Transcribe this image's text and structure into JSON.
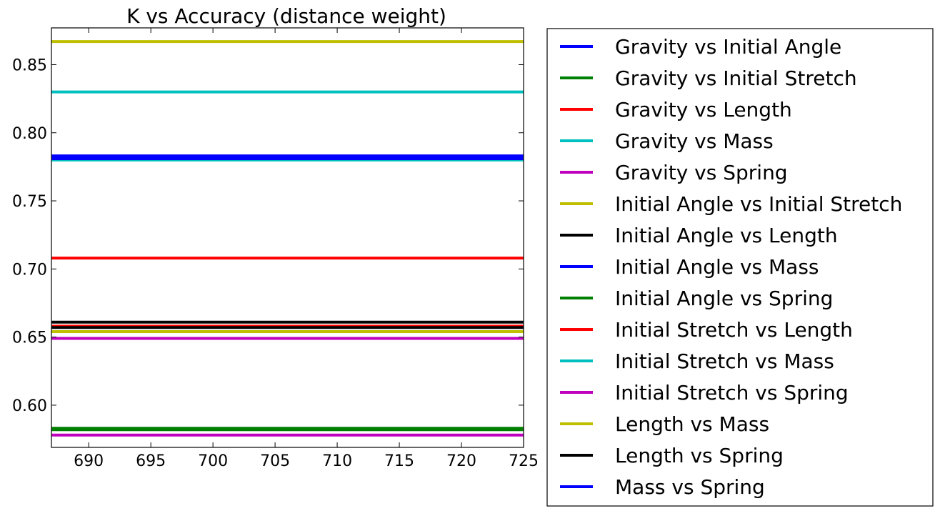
{
  "chart_data": {
    "type": "line",
    "title": "K vs Accuracy (distance weight)",
    "xlabel": "",
    "ylabel": "",
    "xlim": [
      687,
      725
    ],
    "ylim": [
      0.569,
      0.877
    ],
    "x_ticks": [
      690,
      695,
      700,
      705,
      710,
      715,
      720,
      725
    ],
    "x_tick_labels": [
      "690",
      "695",
      "700",
      "705",
      "710",
      "715",
      "720",
      "725"
    ],
    "y_ticks": [
      0.6,
      0.65,
      0.7,
      0.75,
      0.8,
      0.85
    ],
    "y_tick_labels": [
      "0.60",
      "0.65",
      "0.70",
      "0.75",
      "0.80",
      "0.85"
    ],
    "grid": false,
    "legend_position": "outside-right",
    "x": [
      687,
      725
    ],
    "series": [
      {
        "name": "Gravity vs Initial Angle",
        "color": "#0000ff",
        "values": [
          0.783,
          0.783
        ]
      },
      {
        "name": "Gravity vs Initial Stretch",
        "color": "#008000",
        "values": [
          0.582,
          0.582
        ]
      },
      {
        "name": "Gravity vs Length",
        "color": "#ff0000",
        "values": [
          0.658,
          0.658
        ]
      },
      {
        "name": "Gravity vs Mass",
        "color": "#00bfbf",
        "values": [
          0.78,
          0.78
        ]
      },
      {
        "name": "Gravity vs Spring",
        "color": "#bf00bf",
        "values": [
          0.578,
          0.578
        ]
      },
      {
        "name": "Initial Angle vs Initial Stretch",
        "color": "#bfbf00",
        "values": [
          0.654,
          0.654
        ]
      },
      {
        "name": "Initial Angle vs Length",
        "color": "#000000",
        "values": [
          0.657,
          0.657
        ]
      },
      {
        "name": "Initial Angle vs Mass",
        "color": "#0000ff",
        "values": [
          0.781,
          0.781
        ]
      },
      {
        "name": "Initial Angle vs Spring",
        "color": "#008000",
        "values": [
          0.583,
          0.583
        ]
      },
      {
        "name": "Initial Stretch vs Length",
        "color": "#ff0000",
        "values": [
          0.708,
          0.708
        ]
      },
      {
        "name": "Initial Stretch vs Mass",
        "color": "#00bfbf",
        "values": [
          0.83,
          0.83
        ]
      },
      {
        "name": "Initial Stretch vs Spring",
        "color": "#bf00bf",
        "values": [
          0.649,
          0.649
        ]
      },
      {
        "name": "Length vs Mass",
        "color": "#bfbf00",
        "values": [
          0.867,
          0.867
        ]
      },
      {
        "name": "Length vs Spring",
        "color": "#000000",
        "values": [
          0.661,
          0.661
        ]
      },
      {
        "name": "Mass vs Spring",
        "color": "#0000ff",
        "values": [
          0.782,
          0.782
        ]
      }
    ]
  }
}
